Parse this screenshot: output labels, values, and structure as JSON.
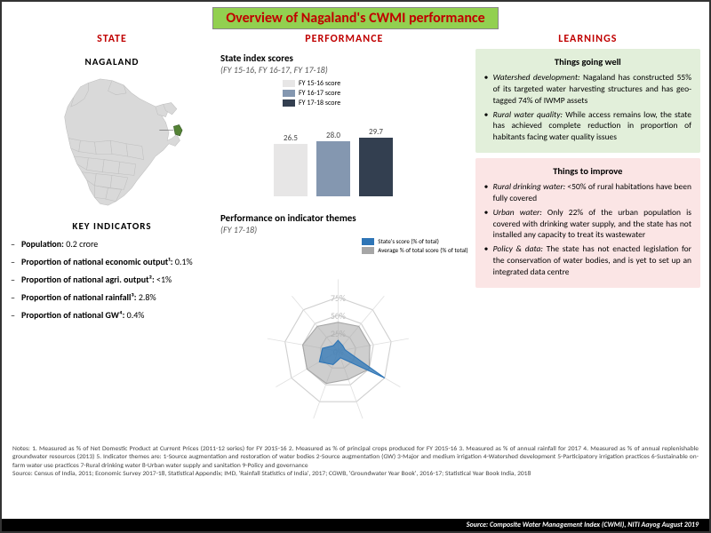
{
  "title": "Overview of Nagaland's CWMI performance",
  "headers": {
    "state": "STATE",
    "performance": "PERFORMANCE",
    "learnings": "LEARNINGS"
  },
  "state": {
    "name": "NAGALAND",
    "map_fill": "#d9d9d9",
    "map_stroke": "#bfbfbf",
    "highlight_fill": "#548235",
    "ki_title": "KEY INDICATORS",
    "indicators": [
      {
        "label": "Population:",
        "value": "0.2 crore"
      },
      {
        "label": "Proportion of national economic output¹:",
        "value": "0.1%"
      },
      {
        "label": "Proportion of national agri. output²:",
        "value": "<1%"
      },
      {
        "label": "Proportion of national rainfall³:",
        "value": "2.8%"
      },
      {
        "label": "Proportion of national GW⁴:",
        "value": "0.4%"
      }
    ]
  },
  "index_chart": {
    "title": "State index scores",
    "subtitle": "(FY 15-16, FY 16-17, FY 17-18)",
    "series": [
      {
        "label": "FY 15-16 score",
        "color": "#e7e6e6",
        "value": 26.5
      },
      {
        "label": "FY 16-17 score",
        "color": "#8497b0",
        "value": 28.0
      },
      {
        "label": "FY 17-18 score",
        "color": "#333f50",
        "value": 29.7
      }
    ],
    "ymax": 35
  },
  "radar_chart": {
    "title": "Performance on indicator themes",
    "subtitle": "(FY 17-18)",
    "rings": [
      25,
      50,
      75
    ],
    "ring_label_color": "#bfbfbf",
    "n_axes": 9,
    "state_color": "#2e75b6",
    "avg_color": "#a6a6a6",
    "legend_state": "State's score (% of total)",
    "legend_avg": "Average % of total score (% of total)",
    "state_vals": [
      15,
      10,
      10,
      75,
      10,
      20,
      30,
      22,
      10
    ],
    "avg_vals": [
      40,
      45,
      45,
      50,
      42,
      48,
      50,
      50,
      45
    ]
  },
  "learnings": {
    "good_title": "Things going well",
    "good_items": [
      "<i>Watershed development:</i> Nagaland has constructed 55% of its targeted water harvesting structures and has geo-tagged 74% of IWMP assets",
      "<i>Rural water quality:</i> While access remains low, the state has achieved complete reduction in proportion of habitants facing water quality issues"
    ],
    "good_bg": "#e2efda",
    "bad_title": "Things to improve",
    "bad_items": [
      "<i>Rural drinking water:</i> <50% of rural habitations have been fully covered",
      "<i>Urban water:</i> Only 22% of the urban population is covered with drinking water supply, and the state has not installed any capacity to treat its wastewater",
      "<i>Policy & data:</i> The state has not enacted legislation for the conservation of water bodies, and is yet to set up an integrated data centre"
    ],
    "bad_bg": "#fbe5e5"
  },
  "notes": "Notes: 1. Measured as % of Net Domestic Product at Current Prices (2011-12 series) for FY 2015-16 2. Measured as % of principal crops produced for FY 2015-16 3. Measured as % of annual rainfall for 2017 4. Measured as % of annual replenishable groundwater resources (2013) 5. Indicator themes are: 1-Source augmentation and restoration of water bodies 2-Source augmentation (GW) 3-Major and medium irrigation 4-Watershed development 5-Participatory irrigation practices 6-Sustainable on-farm water use practices 7-Rural drinking water 8-Urban water supply and sanitation 9-Policy and governance",
  "sources_line": "Source: Census of India, 2011; Economic Survey 2017-18, Statistical Appendix; IMD, 'Rainfall Statistics of India', 2017; CGWB, 'Groundwater Year Book', 2016-17; Statistical Year Book India, 2018",
  "source_bar": "Source: Composite Water Management Index (CWMI), NITI Aayog August 2019"
}
